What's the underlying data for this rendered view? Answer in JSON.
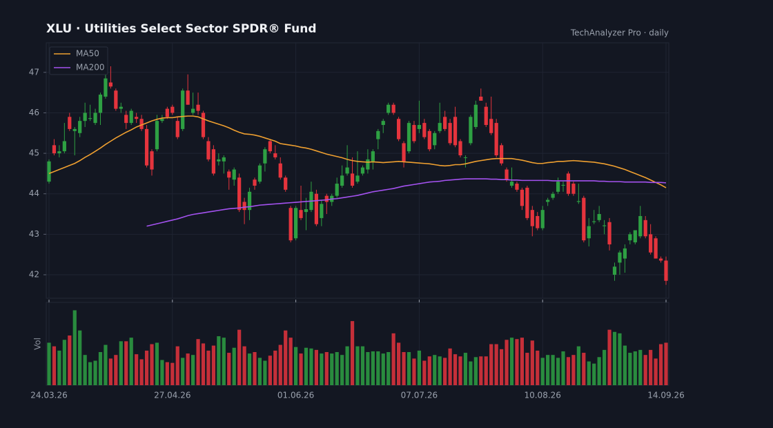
{
  "chart_data": {
    "type": "candlestick",
    "title": "XLU  ·  Utilities Select Sector SPDR® Fund",
    "subtitle": "TechAnalyzer Pro · daily",
    "up_color": "#2ea043",
    "down_color": "#e5343d",
    "grid": true,
    "legend": "upper left",
    "ylim": [
      41.42,
      47.73
    ],
    "yticks": [
      42,
      43,
      44,
      45,
      46,
      47
    ],
    "categories": [
      "24.03.26",
      null,
      null,
      null,
      null,
      null,
      null,
      null,
      null,
      null,
      null,
      null,
      null,
      null,
      null,
      null,
      null,
      null,
      null,
      null,
      null,
      null,
      null,
      null,
      "27.04.26",
      null,
      null,
      null,
      null,
      null,
      null,
      null,
      null,
      null,
      null,
      null,
      null,
      null,
      null,
      null,
      null,
      null,
      null,
      null,
      null,
      null,
      null,
      null,
      "01.06.26",
      null,
      null,
      null,
      null,
      null,
      null,
      null,
      null,
      null,
      null,
      null,
      null,
      null,
      null,
      null,
      null,
      null,
      null,
      null,
      null,
      null,
      null,
      null,
      "07.07.26",
      null,
      null,
      null,
      null,
      null,
      null,
      null,
      null,
      null,
      null,
      null,
      null,
      null,
      null,
      null,
      null,
      null,
      null,
      null,
      null,
      null,
      null,
      null,
      "10.08.26",
      null,
      null,
      null,
      null,
      null,
      null,
      null,
      null,
      null,
      null,
      null,
      null,
      null,
      null,
      null,
      null,
      null,
      null,
      null,
      null,
      null,
      null,
      null,
      "14.09.26"
    ],
    "ohlc": [
      [
        44.3,
        44.85,
        44.25,
        44.8
      ],
      [
        45.2,
        45.35,
        44.95,
        45.0
      ],
      [
        45.0,
        45.2,
        44.9,
        45.05
      ],
      [
        45.05,
        45.75,
        45.0,
        45.3
      ],
      [
        45.9,
        46.0,
        45.55,
        45.6
      ],
      [
        45.55,
        45.65,
        44.95,
        45.6
      ],
      [
        45.5,
        45.9,
        45.4,
        45.8
      ],
      [
        45.8,
        46.25,
        45.65,
        46.0
      ],
      [
        45.85,
        46.2,
        45.8,
        45.87
      ],
      [
        45.75,
        46.1,
        45.7,
        46.0
      ],
      [
        46.0,
        46.5,
        45.7,
        46.45
      ],
      [
        46.4,
        47.0,
        46.35,
        46.85
      ],
      [
        46.75,
        47.15,
        46.6,
        46.65
      ],
      [
        46.55,
        46.6,
        46.05,
        46.1
      ],
      [
        46.1,
        46.25,
        46.0,
        46.15
      ],
      [
        45.95,
        46.05,
        45.6,
        45.75
      ],
      [
        45.75,
        46.1,
        45.7,
        46.05
      ],
      [
        45.9,
        46.0,
        45.75,
        45.85
      ],
      [
        45.85,
        45.95,
        45.55,
        45.6
      ],
      [
        45.6,
        45.7,
        44.65,
        44.7
      ],
      [
        45.05,
        45.1,
        44.45,
        44.6
      ],
      [
        45.1,
        45.95,
        45.05,
        45.8
      ],
      [
        45.8,
        45.95,
        45.75,
        45.85
      ],
      [
        46.1,
        46.15,
        45.85,
        45.9
      ],
      [
        46.15,
        46.2,
        45.95,
        46.0
      ],
      [
        45.8,
        45.9,
        45.35,
        45.4
      ],
      [
        45.6,
        46.6,
        45.55,
        46.55
      ],
      [
        46.55,
        46.95,
        46.2,
        46.2
      ],
      [
        46.0,
        46.5,
        45.95,
        46.1
      ],
      [
        46.2,
        46.5,
        45.95,
        46.05
      ],
      [
        46.0,
        46.05,
        45.35,
        45.4
      ],
      [
        45.3,
        45.4,
        44.8,
        44.85
      ],
      [
        45.1,
        45.2,
        44.45,
        44.5
      ],
      [
        44.8,
        45.0,
        44.7,
        44.85
      ],
      [
        44.8,
        44.95,
        44.5,
        44.9
      ],
      [
        44.55,
        44.6,
        44.1,
        44.4
      ],
      [
        44.35,
        44.65,
        44.2,
        44.6
      ],
      [
        44.4,
        44.5,
        43.55,
        43.6
      ],
      [
        43.8,
        43.9,
        43.25,
        43.6
      ],
      [
        43.6,
        44.15,
        43.35,
        44.05
      ],
      [
        44.35,
        44.4,
        44.1,
        44.2
      ],
      [
        44.3,
        44.75,
        44.25,
        44.7
      ],
      [
        44.75,
        45.15,
        44.55,
        45.1
      ],
      [
        45.3,
        45.35,
        45.0,
        45.05
      ],
      [
        45.0,
        45.2,
        44.85,
        44.9
      ],
      [
        44.75,
        44.9,
        44.35,
        44.4
      ],
      [
        44.4,
        44.45,
        44.05,
        44.1
      ],
      [
        43.65,
        43.7,
        42.8,
        42.85
      ],
      [
        42.9,
        43.7,
        42.85,
        43.65
      ],
      [
        43.6,
        44.2,
        43.35,
        43.4
      ],
      [
        43.55,
        43.9,
        43.1,
        43.62
      ],
      [
        43.6,
        44.3,
        43.55,
        44.05
      ],
      [
        44.0,
        44.1,
        43.2,
        43.25
      ],
      [
        43.4,
        43.85,
        43.2,
        43.75
      ],
      [
        43.95,
        44.0,
        43.5,
        43.8
      ],
      [
        43.8,
        44.0,
        43.7,
        43.95
      ],
      [
        43.95,
        44.4,
        43.9,
        44.25
      ],
      [
        44.2,
        44.7,
        44.15,
        44.45
      ],
      [
        44.5,
        45.2,
        44.45,
        44.65
      ],
      [
        44.5,
        44.9,
        44.15,
        44.2
      ],
      [
        44.3,
        45.05,
        44.25,
        44.45
      ],
      [
        44.5,
        44.7,
        44.45,
        44.65
      ],
      [
        44.6,
        45.1,
        44.5,
        44.85
      ],
      [
        44.8,
        45.1,
        44.6,
        45.05
      ],
      [
        45.35,
        45.6,
        45.1,
        45.55
      ],
      [
        45.7,
        45.85,
        45.5,
        45.8
      ],
      [
        46.0,
        46.25,
        45.95,
        46.2
      ],
      [
        46.2,
        46.25,
        45.95,
        46.0
      ],
      [
        45.85,
        45.9,
        45.3,
        45.35
      ],
      [
        45.25,
        45.3,
        44.65,
        44.8
      ],
      [
        45.05,
        45.8,
        45.0,
        45.75
      ],
      [
        45.7,
        45.8,
        45.25,
        45.3
      ],
      [
        45.6,
        46.3,
        45.5,
        45.7
      ],
      [
        45.75,
        45.85,
        45.35,
        45.4
      ],
      [
        45.55,
        45.6,
        45.05,
        45.1
      ],
      [
        45.2,
        45.55,
        45.1,
        45.5
      ],
      [
        45.55,
        46.25,
        45.5,
        45.75
      ],
      [
        45.9,
        46.05,
        45.55,
        45.6
      ],
      [
        45.75,
        45.85,
        45.2,
        45.25
      ],
      [
        45.9,
        46.15,
        45.15,
        45.2
      ],
      [
        45.3,
        45.35,
        44.9,
        44.95
      ],
      [
        44.9,
        44.95,
        44.65,
        44.9
      ],
      [
        45.25,
        45.95,
        45.2,
        45.9
      ],
      [
        45.65,
        46.3,
        45.6,
        46.2
      ],
      [
        46.4,
        46.6,
        46.3,
        46.3
      ],
      [
        46.15,
        46.25,
        45.65,
        45.7
      ],
      [
        45.85,
        46.4,
        45.45,
        45.5
      ],
      [
        45.75,
        45.85,
        44.9,
        44.95
      ],
      [
        45.2,
        45.25,
        44.7,
        44.75
      ],
      [
        44.6,
        44.65,
        44.3,
        44.35
      ],
      [
        44.2,
        44.65,
        44.15,
        44.3
      ],
      [
        44.25,
        44.3,
        44.05,
        44.1
      ],
      [
        44.1,
        44.15,
        43.6,
        43.7
      ],
      [
        44.15,
        44.2,
        43.35,
        43.4
      ],
      [
        43.6,
        43.7,
        42.95,
        43.2
      ],
      [
        43.45,
        43.55,
        43.1,
        43.15
      ],
      [
        43.15,
        43.7,
        43.1,
        43.6
      ],
      [
        43.8,
        43.9,
        43.7,
        43.85
      ],
      [
        43.9,
        44.05,
        43.85,
        44.0
      ],
      [
        44.05,
        44.4,
        44.0,
        44.3
      ],
      [
        44.2,
        44.3,
        44.05,
        44.22
      ],
      [
        44.5,
        44.55,
        43.95,
        44.0
      ],
      [
        44.25,
        44.3,
        43.95,
        44.0
      ],
      [
        43.8,
        44.25,
        43.75,
        43.82
      ],
      [
        43.9,
        43.95,
        42.8,
        42.85
      ],
      [
        42.9,
        43.4,
        42.7,
        43.2
      ],
      [
        43.3,
        43.6,
        43.25,
        43.32
      ],
      [
        43.35,
        43.7,
        43.3,
        43.5
      ],
      [
        43.2,
        43.35,
        43.0,
        43.22
      ],
      [
        43.3,
        43.4,
        42.6,
        42.75
      ],
      [
        42.0,
        42.3,
        41.85,
        42.2
      ],
      [
        42.3,
        42.6,
        42.0,
        42.55
      ],
      [
        42.4,
        42.75,
        42.05,
        42.65
      ],
      [
        42.85,
        43.05,
        42.75,
        43.0
      ],
      [
        42.8,
        43.1,
        42.75,
        43.1
      ],
      [
        42.95,
        43.7,
        42.9,
        43.45
      ],
      [
        43.35,
        43.45,
        42.9,
        42.95
      ],
      [
        43.0,
        43.25,
        42.5,
        42.55
      ],
      [
        42.9,
        42.95,
        42.4,
        42.4
      ],
      [
        42.4,
        42.45,
        42.3,
        42.35
      ],
      [
        42.35,
        42.45,
        41.75,
        41.85
      ]
    ],
    "series": [
      {
        "name": "MA50",
        "color": "#f0a030",
        "values": [
          44.5,
          44.55,
          44.6,
          44.65,
          44.7,
          44.75,
          44.82,
          44.9,
          44.97,
          45.05,
          45.13,
          45.22,
          45.3,
          45.38,
          45.45,
          45.52,
          45.58,
          45.65,
          45.7,
          45.75,
          45.8,
          45.84,
          45.87,
          45.88,
          45.88,
          45.9,
          45.91,
          45.92,
          45.92,
          45.9,
          45.85,
          45.8,
          45.76,
          45.72,
          45.68,
          45.63,
          45.57,
          45.52,
          45.48,
          45.47,
          45.45,
          45.42,
          45.38,
          45.34,
          45.3,
          45.24,
          45.22,
          45.2,
          45.18,
          45.15,
          45.13,
          45.1,
          45.06,
          45.02,
          44.98,
          44.95,
          44.92,
          44.89,
          44.85,
          44.82,
          44.8,
          44.79,
          44.78,
          44.79,
          44.78,
          44.77,
          44.78,
          44.79,
          44.8,
          44.79,
          44.78,
          44.77,
          44.76,
          44.75,
          44.74,
          44.72,
          44.7,
          44.69,
          44.7,
          44.72,
          44.72,
          44.74,
          44.77,
          44.8,
          44.82,
          44.84,
          44.86,
          44.87,
          44.87,
          44.87,
          44.87,
          44.85,
          44.83,
          44.8,
          44.77,
          44.75,
          44.75,
          44.77,
          44.78,
          44.8,
          44.8,
          44.81,
          44.82,
          44.81,
          44.8,
          44.79,
          44.78,
          44.76,
          44.74,
          44.71,
          44.68,
          44.64,
          44.6,
          44.55,
          44.5,
          44.45,
          44.4,
          44.34,
          44.28,
          44.22,
          44.15
        ]
      },
      {
        "name": "MA200",
        "color": "#a452f0",
        "values": [
          null,
          null,
          null,
          null,
          null,
          null,
          null,
          null,
          null,
          null,
          null,
          null,
          null,
          null,
          null,
          null,
          null,
          null,
          null,
          43.2,
          43.23,
          43.26,
          43.29,
          43.32,
          43.35,
          43.38,
          43.42,
          43.46,
          43.49,
          43.51,
          43.53,
          43.55,
          43.57,
          43.59,
          43.61,
          43.63,
          43.64,
          43.65,
          43.67,
          43.68,
          43.7,
          43.72,
          43.73,
          43.74,
          43.75,
          43.76,
          43.77,
          43.78,
          43.79,
          43.8,
          43.81,
          43.82,
          43.83,
          43.84,
          43.85,
          43.87,
          43.88,
          43.9,
          43.92,
          43.94,
          43.96,
          43.99,
          44.02,
          44.05,
          44.07,
          44.09,
          44.11,
          44.13,
          44.16,
          44.19,
          44.21,
          44.23,
          44.25,
          44.27,
          44.29,
          44.3,
          44.31,
          44.33,
          44.34,
          44.35,
          44.36,
          44.37,
          44.37,
          44.37,
          44.37,
          44.37,
          44.36,
          44.36,
          44.35,
          44.35,
          44.34,
          44.34,
          44.33,
          44.33,
          44.33,
          44.33,
          44.33,
          44.33,
          44.32,
          44.32,
          44.32,
          44.32,
          44.32,
          44.32,
          44.32,
          44.32,
          44.32,
          44.31,
          44.31,
          44.3,
          44.3,
          44.3,
          44.29,
          44.29,
          44.29,
          44.29,
          44.29,
          44.28,
          44.28,
          44.28,
          44.27
        ]
      }
    ],
    "volume": {
      "label": "Vol",
      "ylim": [
        0,
        115
      ],
      "values": [
        59,
        54,
        48,
        63,
        69,
        104,
        76,
        42,
        32,
        34,
        46,
        56,
        37,
        42,
        61,
        61,
        66,
        43,
        36,
        48,
        57,
        59,
        35,
        32,
        31,
        54,
        38,
        44,
        42,
        64,
        58,
        48,
        55,
        68,
        66,
        45,
        52,
        77,
        54,
        44,
        46,
        38,
        34,
        41,
        48,
        56,
        76,
        66,
        53,
        44,
        52,
        51,
        49,
        44,
        46,
        44,
        46,
        42,
        54,
        89,
        54,
        54,
        46,
        47,
        47,
        44,
        46,
        72,
        59,
        46,
        46,
        37,
        48,
        34,
        40,
        42,
        40,
        38,
        51,
        43,
        40,
        45,
        33,
        39,
        40,
        40,
        57,
        57,
        50,
        63,
        66,
        64,
        66,
        45,
        62,
        48,
        38,
        42,
        42,
        38,
        47,
        39,
        42,
        54,
        45,
        33,
        30,
        39,
        49,
        77,
        74,
        72,
        55,
        45,
        47,
        49,
        42,
        49,
        37,
        57,
        59
      ]
    }
  }
}
